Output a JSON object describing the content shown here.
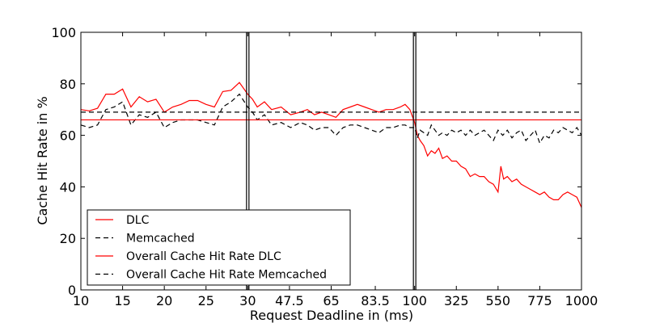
{
  "chart_data": {
    "type": "line",
    "title": "",
    "xlabel": "Request Deadline in (ms)",
    "ylabel": "Cache Hit Rate in %",
    "ylim": [
      0,
      100
    ],
    "yticks": [
      "0",
      "20",
      "40",
      "60",
      "80",
      "100"
    ],
    "xticks": [
      "10",
      "15",
      "20",
      "25",
      "30",
      "47.5",
      "65",
      "83.5",
      "100",
      "325",
      "550",
      "775",
      "1000"
    ],
    "segments": [
      {
        "from": 10,
        "to": 30,
        "scale": "linear"
      },
      {
        "from": 30,
        "to": 100,
        "scale": "linear"
      },
      {
        "from": 100,
        "to": 1000,
        "scale": "linear"
      }
    ],
    "grid": false,
    "legend_position": "bottom-left",
    "series": [
      {
        "name": "DLC",
        "color": "#ff0000",
        "style": "solid",
        "points": [
          [
            10,
            70
          ],
          [
            11,
            69.5
          ],
          [
            12,
            70.5
          ],
          [
            13,
            76
          ],
          [
            14,
            76
          ],
          [
            15,
            78
          ],
          [
            16,
            71
          ],
          [
            17,
            75
          ],
          [
            18,
            73
          ],
          [
            19,
            74
          ],
          [
            20,
            69
          ],
          [
            21,
            71
          ],
          [
            22,
            72
          ],
          [
            23,
            73.5
          ],
          [
            24,
            73.5
          ],
          [
            25,
            72
          ],
          [
            26,
            71
          ],
          [
            27,
            77
          ],
          [
            28,
            77.5
          ],
          [
            29,
            80.5
          ],
          [
            30,
            76
          ],
          [
            32,
            74
          ],
          [
            34,
            71
          ],
          [
            37,
            73
          ],
          [
            40,
            70
          ],
          [
            44,
            71
          ],
          [
            48,
            68
          ],
          [
            52,
            69
          ],
          [
            55,
            70
          ],
          [
            58,
            68
          ],
          [
            61,
            69
          ],
          [
            64,
            68
          ],
          [
            67,
            67
          ],
          [
            70,
            70
          ],
          [
            73,
            71
          ],
          [
            76,
            72
          ],
          [
            79,
            71
          ],
          [
            82,
            70
          ],
          [
            85,
            69
          ],
          [
            88,
            70
          ],
          [
            91,
            70
          ],
          [
            94,
            71
          ],
          [
            96,
            72
          ],
          [
            98,
            70
          ],
          [
            100,
            65
          ],
          [
            115,
            60
          ],
          [
            130,
            58
          ],
          [
            150,
            56
          ],
          [
            170,
            52
          ],
          [
            190,
            54
          ],
          [
            210,
            53
          ],
          [
            230,
            55
          ],
          [
            250,
            51
          ],
          [
            275,
            52
          ],
          [
            300,
            50
          ],
          [
            325,
            50
          ],
          [
            350,
            48
          ],
          [
            375,
            47
          ],
          [
            400,
            44
          ],
          [
            425,
            45
          ],
          [
            450,
            44
          ],
          [
            475,
            44
          ],
          [
            500,
            42
          ],
          [
            525,
            41
          ],
          [
            550,
            38
          ],
          [
            565,
            48
          ],
          [
            580,
            43
          ],
          [
            600,
            44
          ],
          [
            625,
            42
          ],
          [
            650,
            43
          ],
          [
            675,
            41
          ],
          [
            700,
            40
          ],
          [
            725,
            39
          ],
          [
            750,
            38
          ],
          [
            775,
            37
          ],
          [
            800,
            38
          ],
          [
            825,
            36
          ],
          [
            850,
            35
          ],
          [
            875,
            35
          ],
          [
            900,
            37
          ],
          [
            925,
            38
          ],
          [
            950,
            37
          ],
          [
            975,
            36
          ],
          [
            1000,
            32
          ]
        ]
      },
      {
        "name": "Memcached",
        "color": "#000000",
        "style": "dashed",
        "points": [
          [
            10,
            64
          ],
          [
            11,
            63
          ],
          [
            12,
            64
          ],
          [
            13,
            70
          ],
          [
            14,
            71
          ],
          [
            15,
            73
          ],
          [
            16,
            64
          ],
          [
            17,
            68
          ],
          [
            18,
            67
          ],
          [
            19,
            69
          ],
          [
            20,
            63
          ],
          [
            21,
            65
          ],
          [
            22,
            66
          ],
          [
            23,
            66
          ],
          [
            24,
            66
          ],
          [
            25,
            65
          ],
          [
            26,
            64
          ],
          [
            27,
            71
          ],
          [
            28,
            73
          ],
          [
            29,
            76
          ],
          [
            30,
            71
          ],
          [
            32,
            69
          ],
          [
            34,
            66
          ],
          [
            37,
            68
          ],
          [
            40,
            64
          ],
          [
            44,
            65
          ],
          [
            48,
            63
          ],
          [
            52,
            65
          ],
          [
            55,
            64
          ],
          [
            58,
            62
          ],
          [
            61,
            63
          ],
          [
            64,
            63
          ],
          [
            67,
            60
          ],
          [
            70,
            63
          ],
          [
            73,
            64
          ],
          [
            76,
            64
          ],
          [
            79,
            63
          ],
          [
            82,
            62
          ],
          [
            85,
            61
          ],
          [
            88,
            63
          ],
          [
            91,
            63
          ],
          [
            94,
            64
          ],
          [
            96,
            64
          ],
          [
            98,
            63
          ],
          [
            100,
            63
          ],
          [
            115,
            59
          ],
          [
            130,
            62
          ],
          [
            150,
            61
          ],
          [
            170,
            60
          ],
          [
            190,
            64
          ],
          [
            210,
            62
          ],
          [
            230,
            60
          ],
          [
            250,
            61
          ],
          [
            275,
            60
          ],
          [
            300,
            62
          ],
          [
            325,
            61
          ],
          [
            350,
            62
          ],
          [
            375,
            60
          ],
          [
            400,
            62
          ],
          [
            425,
            60
          ],
          [
            450,
            61
          ],
          [
            475,
            62
          ],
          [
            500,
            60
          ],
          [
            525,
            58
          ],
          [
            550,
            62
          ],
          [
            575,
            60
          ],
          [
            600,
            62
          ],
          [
            625,
            59
          ],
          [
            650,
            61
          ],
          [
            675,
            62
          ],
          [
            700,
            58
          ],
          [
            725,
            60
          ],
          [
            750,
            62
          ],
          [
            775,
            57
          ],
          [
            800,
            60
          ],
          [
            825,
            59
          ],
          [
            850,
            62
          ],
          [
            875,
            61
          ],
          [
            900,
            63
          ],
          [
            925,
            62
          ],
          [
            950,
            61
          ],
          [
            975,
            63
          ],
          [
            1000,
            60
          ]
        ]
      },
      {
        "name": "Overall Cache Hit Rate DLC",
        "color": "#ff0000",
        "style": "solid",
        "constant": 66
      },
      {
        "name": "Overall Cache Hit Rate Memcached",
        "color": "#000000",
        "style": "dashed",
        "constant": 69
      }
    ]
  }
}
